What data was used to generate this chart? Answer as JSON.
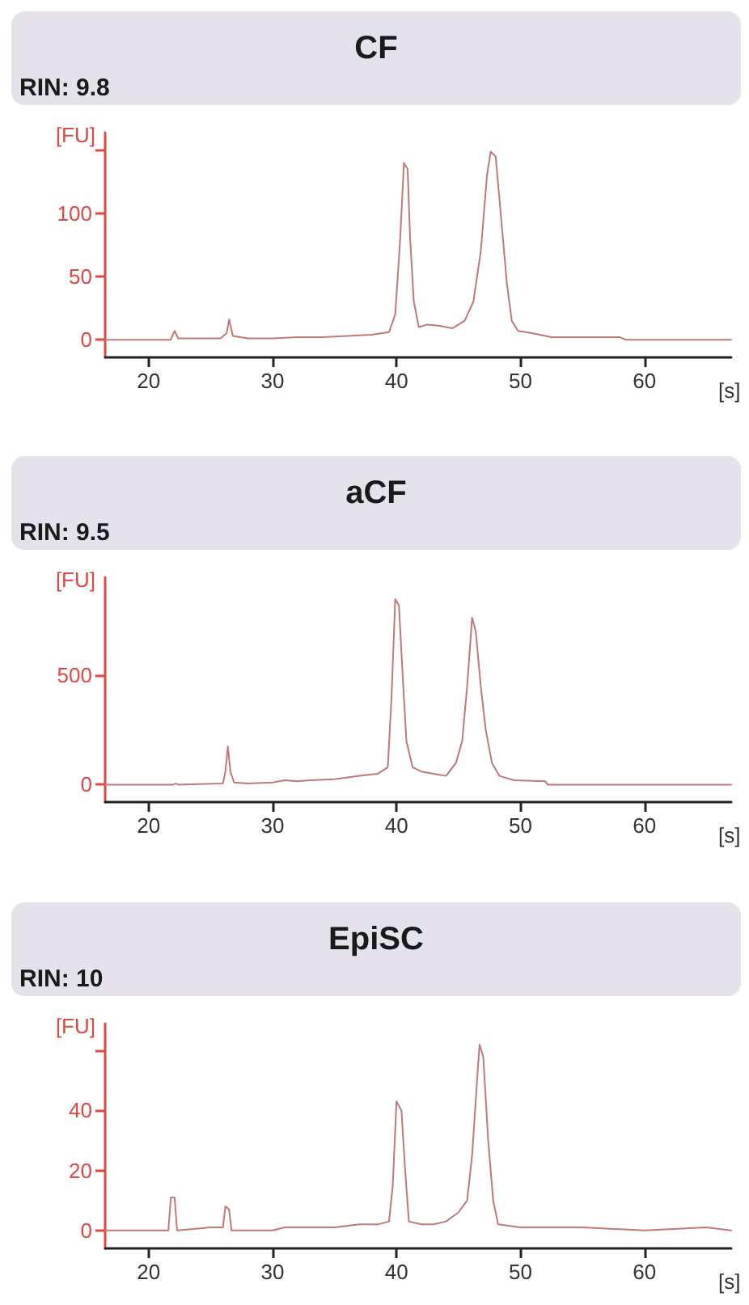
{
  "chart_data": [
    {
      "type": "line",
      "title": "CF",
      "annotations": [
        "RIN: 9.8"
      ],
      "xlabel": "[s]",
      "ylabel": "[FU]",
      "xlim": [
        16.5,
        67
      ],
      "ylim": [
        -14,
        164
      ],
      "xticks": [
        20,
        30,
        40,
        50,
        60
      ],
      "yticks": [
        0,
        50,
        100,
        {
          "value": 150,
          "label": null
        }
      ],
      "marker": "none",
      "line_style": "solid",
      "series": [
        {
          "color": "#c07878",
          "x": [
            16.5,
            21.8,
            22.1,
            22.4,
            25.8,
            26.3,
            26.5,
            26.8,
            28,
            30,
            32,
            34,
            36,
            38,
            39.4,
            39.9,
            40.3,
            40.6,
            40.9,
            41.1,
            41.4,
            41.8,
            42.5,
            43.5,
            44.5,
            45.5,
            46.2,
            46.8,
            47.3,
            47.6,
            48.0,
            48.5,
            48.9,
            49.3,
            49.8,
            51,
            52.5,
            55,
            58,
            58.5,
            67
          ],
          "values": [
            0,
            0,
            7,
            1,
            1,
            5,
            16,
            3,
            1,
            1,
            2,
            2,
            3,
            4,
            6,
            20,
            80,
            140,
            135,
            80,
            30,
            10,
            12,
            11,
            9,
            15,
            30,
            70,
            130,
            149,
            145,
            90,
            45,
            15,
            7,
            5,
            2,
            2,
            2,
            0,
            0
          ]
        }
      ]
    },
    {
      "type": "line",
      "title": "aCF",
      "annotations": [
        "RIN: 9.5"
      ],
      "xlabel": "[s]",
      "ylabel": "[FU]",
      "xlim": [
        16.5,
        67
      ],
      "ylim": [
        -80,
        950
      ],
      "xticks": [
        20,
        30,
        40,
        50,
        60
      ],
      "yticks": [
        0,
        500
      ],
      "marker": "none",
      "line_style": "solid",
      "series": [
        {
          "color": "#c07878",
          "x": [
            16.5,
            22,
            22.2,
            22.4,
            26,
            26.2,
            26.4,
            26.6,
            26.9,
            28,
            30,
            31,
            32,
            33,
            35,
            37,
            38.5,
            39.3,
            39.6,
            39.9,
            40.2,
            40.5,
            40.8,
            41.3,
            42,
            43,
            44,
            44.8,
            45.3,
            45.7,
            46.1,
            46.4,
            46.8,
            47.2,
            47.7,
            48.3,
            49.5,
            52,
            52.2,
            67
          ],
          "values": [
            0,
            0,
            5,
            0,
            5,
            60,
            175,
            60,
            10,
            5,
            10,
            20,
            15,
            20,
            25,
            40,
            50,
            80,
            400,
            850,
            820,
            500,
            200,
            80,
            60,
            50,
            40,
            100,
            200,
            450,
            765,
            700,
            450,
            250,
            100,
            40,
            20,
            15,
            0,
            0
          ]
        }
      ]
    },
    {
      "type": "line",
      "title": "EpiSC",
      "annotations": [
        "RIN: 10"
      ],
      "xlabel": "[s]",
      "ylabel": "[FU]",
      "xlim": [
        16.5,
        67
      ],
      "ylim": [
        -6,
        69
      ],
      "xticks": [
        20,
        30,
        40,
        50,
        60
      ],
      "yticks": [
        0,
        20,
        40,
        {
          "value": 60,
          "label": null
        }
      ],
      "marker": "none",
      "line_style": "solid",
      "series": [
        {
          "color": "#c07878",
          "x": [
            16.5,
            21.6,
            21.8,
            22.1,
            22.3,
            25,
            26,
            26.2,
            26.5,
            26.7,
            30,
            31,
            35,
            37,
            38.5,
            39.4,
            39.7,
            40.0,
            40.4,
            40.7,
            41.0,
            42,
            43,
            44,
            45,
            45.7,
            46.1,
            46.5,
            46.7,
            47.0,
            47.4,
            47.8,
            48.2,
            50,
            55,
            60,
            65,
            67
          ],
          "values": [
            0,
            0,
            11,
            11,
            0,
            1,
            1,
            8,
            7,
            0,
            0,
            1,
            1,
            2,
            2,
            3,
            15,
            43,
            40,
            20,
            3,
            2,
            2,
            3,
            6,
            10,
            25,
            50,
            62,
            58,
            30,
            10,
            2,
            1,
            1,
            0,
            1,
            0
          ]
        }
      ]
    }
  ]
}
